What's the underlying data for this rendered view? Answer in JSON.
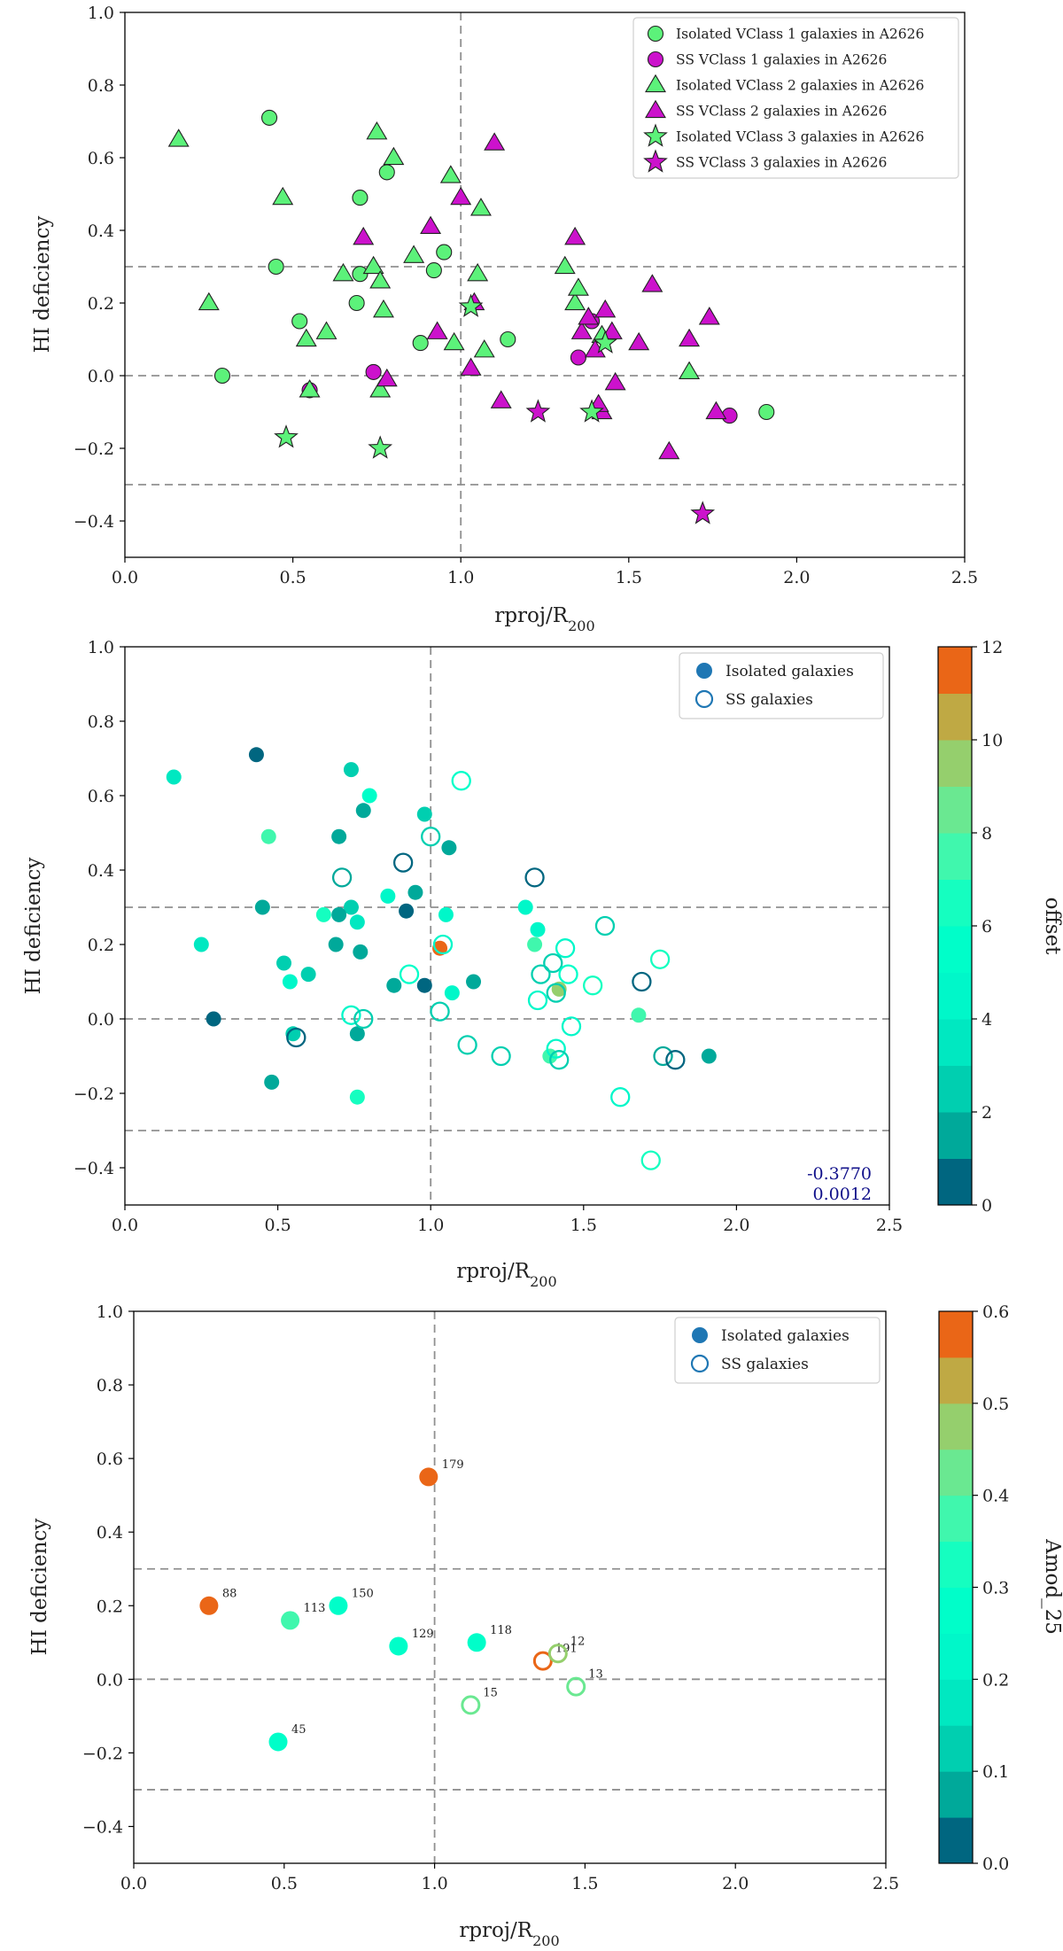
{
  "chart_data": [
    {
      "type": "scatter",
      "xlabel": "rproj/R",
      "xlabel_sub": "200",
      "ylabel": "HI deficiency",
      "xlim": [
        0.0,
        2.5
      ],
      "ylim": [
        -0.5,
        1.0
      ],
      "xticks": [
        "0.0",
        "0.5",
        "1.0",
        "1.5",
        "2.0",
        "2.5"
      ],
      "yticks": [
        "1.0",
        "0.8",
        "0.6",
        "0.4",
        "0.2",
        "0.0",
        "−0.2",
        "−0.4"
      ],
      "hlines": [
        0.3,
        0.0,
        -0.3
      ],
      "vlines": [
        1.0
      ],
      "legend_position": "upper-right",
      "colors": {
        "isolated": "#5cf27a",
        "ss": "#cc12cc",
        "edge": "#222222",
        "ref": "#888888"
      },
      "series": [
        {
          "name": "Isolated VClass 1 galaxies in A2626",
          "marker": "circle",
          "color_key": "isolated",
          "points": [
            [
              0.43,
              0.71
            ],
            [
              0.45,
              0.3
            ],
            [
              0.29,
              0.0
            ],
            [
              0.52,
              0.15
            ],
            [
              0.69,
              0.2
            ],
            [
              0.7,
              0.49
            ],
            [
              0.7,
              0.28
            ],
            [
              0.78,
              0.56
            ],
            [
              0.88,
              0.09
            ],
            [
              0.92,
              0.29
            ],
            [
              0.95,
              0.34
            ],
            [
              1.14,
              0.1
            ],
            [
              1.91,
              -0.1
            ]
          ]
        },
        {
          "name": "SS VClass 1 galaxies in A2626",
          "marker": "circle",
          "color_key": "ss",
          "points": [
            [
              0.55,
              -0.04
            ],
            [
              0.74,
              0.01
            ],
            [
              1.35,
              0.05
            ],
            [
              1.39,
              0.15
            ],
            [
              1.8,
              -0.11
            ]
          ]
        },
        {
          "name": "Isolated VClass 2 galaxies in A2626",
          "marker": "triangle",
          "color_key": "isolated",
          "points": [
            [
              0.16,
              0.65
            ],
            [
              0.25,
              0.2
            ],
            [
              0.47,
              0.49
            ],
            [
              0.54,
              0.1
            ],
            [
              0.55,
              -0.04
            ],
            [
              0.6,
              0.12
            ],
            [
              0.65,
              0.28
            ],
            [
              0.74,
              0.3
            ],
            [
              0.75,
              0.67
            ],
            [
              0.76,
              0.26
            ],
            [
              0.77,
              0.18
            ],
            [
              0.8,
              0.6
            ],
            [
              0.86,
              0.33
            ],
            [
              0.97,
              0.55
            ],
            [
              0.98,
              0.09
            ],
            [
              1.05,
              0.28
            ],
            [
              1.06,
              0.46
            ],
            [
              1.07,
              0.07
            ],
            [
              1.31,
              0.3
            ],
            [
              1.34,
              0.2
            ],
            [
              1.35,
              0.24
            ],
            [
              1.68,
              0.01
            ],
            [
              0.76,
              -0.04
            ],
            [
              1.42,
              0.11
            ]
          ]
        },
        {
          "name": "SS VClass 2 galaxies in A2626",
          "marker": "triangle",
          "color_key": "ss",
          "points": [
            [
              0.71,
              0.38
            ],
            [
              0.78,
              -0.01
            ],
            [
              0.91,
              0.41
            ],
            [
              0.93,
              0.12
            ],
            [
              1.0,
              0.49
            ],
            [
              1.03,
              0.02
            ],
            [
              1.04,
              0.2
            ],
            [
              1.1,
              0.64
            ],
            [
              1.12,
              -0.07
            ],
            [
              1.34,
              0.38
            ],
            [
              1.36,
              0.12
            ],
            [
              1.38,
              0.16
            ],
            [
              1.4,
              0.07
            ],
            [
              1.42,
              -0.1
            ],
            [
              1.43,
              0.18
            ],
            [
              1.45,
              0.12
            ],
            [
              1.46,
              -0.02
            ],
            [
              1.53,
              0.09
            ],
            [
              1.57,
              0.25
            ],
            [
              1.62,
              -0.21
            ],
            [
              1.68,
              0.1
            ],
            [
              1.74,
              0.16
            ],
            [
              1.76,
              -0.1
            ],
            [
              1.41,
              -0.08
            ]
          ]
        },
        {
          "name": "Isolated VClass 3 galaxies in A2626",
          "marker": "star",
          "color_key": "isolated",
          "points": [
            [
              0.48,
              -0.17
            ],
            [
              0.76,
              -0.2
            ],
            [
              1.03,
              0.19
            ],
            [
              1.39,
              -0.1
            ],
            [
              1.43,
              0.09
            ]
          ]
        },
        {
          "name": "SS VClass 3 galaxies in A2626",
          "marker": "star",
          "color_key": "ss",
          "points": [
            [
              1.23,
              -0.1
            ],
            [
              1.72,
              -0.38
            ]
          ]
        }
      ]
    },
    {
      "type": "scatter",
      "xlabel": "rproj/R",
      "xlabel_sub": "200",
      "ylabel": "HI deficiency",
      "xlim": [
        0.0,
        2.5
      ],
      "ylim": [
        -0.5,
        1.0
      ],
      "xticks": [
        "0.0",
        "0.5",
        "1.0",
        "1.5",
        "2.0",
        "2.5"
      ],
      "yticks": [
        "1.0",
        "0.8",
        "0.6",
        "0.4",
        "0.2",
        "0.0",
        "−0.2",
        "−0.4"
      ],
      "hlines": [
        0.3,
        0.0,
        -0.3
      ],
      "vlines": [
        1.0
      ],
      "legend": [
        "Isolated galaxies",
        "SS galaxies"
      ],
      "legend_position": "upper-right",
      "colorbar": {
        "label": "offset",
        "min": 0,
        "max": 12,
        "ticks": [
          "0",
          "2",
          "4",
          "6",
          "8",
          "10",
          "12"
        ],
        "steps": 12
      },
      "annotations": [
        "-0.3770",
        "0.0012"
      ],
      "isolated_points": [
        [
          0.43,
          0.71,
          0.3
        ],
        [
          0.16,
          0.65,
          3.6
        ],
        [
          0.74,
          0.67,
          2.6
        ],
        [
          0.8,
          0.6,
          5.6
        ],
        [
          0.98,
          0.55,
          2.6
        ],
        [
          0.47,
          0.49,
          7.0
        ],
        [
          0.7,
          0.49,
          1.3
        ],
        [
          0.78,
          0.56,
          1.5
        ],
        [
          1.06,
          0.46,
          1.5
        ],
        [
          0.95,
          0.34,
          1.3
        ],
        [
          0.86,
          0.33,
          4.5
        ],
        [
          0.45,
          0.3,
          1.3
        ],
        [
          0.74,
          0.3,
          2.6
        ],
        [
          0.92,
          0.29,
          0.6
        ],
        [
          1.05,
          0.28,
          4.0
        ],
        [
          0.65,
          0.28,
          6.0
        ],
        [
          0.7,
          0.28,
          1.0
        ],
        [
          0.76,
          0.26,
          3.6
        ],
        [
          1.31,
          0.3,
          4.0
        ],
        [
          1.35,
          0.24,
          4.0
        ],
        [
          0.25,
          0.2,
          3.6
        ],
        [
          0.69,
          0.2,
          1.0
        ],
        [
          0.77,
          0.18,
          1.5
        ],
        [
          1.03,
          0.19,
          11.5
        ],
        [
          1.34,
          0.2,
          7.0
        ],
        [
          0.52,
          0.15,
          2.6
        ],
        [
          0.6,
          0.12,
          2.6
        ],
        [
          0.54,
          0.1,
          4.5
        ],
        [
          1.14,
          0.1,
          1.3
        ],
        [
          0.88,
          0.09,
          1.3
        ],
        [
          0.98,
          0.09,
          0.6
        ],
        [
          1.07,
          0.07,
          4.5
        ],
        [
          1.42,
          0.08,
          9.0
        ],
        [
          1.68,
          0.01,
          7.5
        ],
        [
          0.29,
          0.0,
          0.3
        ],
        [
          0.55,
          -0.04,
          2.0
        ],
        [
          0.76,
          -0.04,
          1.0
        ],
        [
          1.39,
          -0.1,
          7.0
        ],
        [
          0.48,
          -0.17,
          1.0
        ],
        [
          0.76,
          -0.21,
          6.5
        ],
        [
          1.91,
          -0.1,
          1.3
        ]
      ],
      "ss_points": [
        [
          1.1,
          0.64,
          5.6
        ],
        [
          1.0,
          0.49,
          2.6
        ],
        [
          0.91,
          0.42,
          0.3
        ],
        [
          0.71,
          0.38,
          1.0
        ],
        [
          1.34,
          0.38,
          0.3
        ],
        [
          1.57,
          0.25,
          2.6
        ],
        [
          1.04,
          0.2,
          4.0
        ],
        [
          1.44,
          0.19,
          4.5
        ],
        [
          1.75,
          0.16,
          6.0
        ],
        [
          1.4,
          0.15,
          2.6
        ],
        [
          0.93,
          0.12,
          5.5
        ],
        [
          1.36,
          0.12,
          2.6
        ],
        [
          1.45,
          0.12,
          5.5
        ],
        [
          1.53,
          0.09,
          6.5
        ],
        [
          1.69,
          0.1,
          0.6
        ],
        [
          1.41,
          0.07,
          2.6
        ],
        [
          1.03,
          0.02,
          2.6
        ],
        [
          0.74,
          0.01,
          4.0
        ],
        [
          0.78,
          0.0,
          2.0
        ],
        [
          1.35,
          0.05,
          4.5
        ],
        [
          1.46,
          -0.02,
          4.5
        ],
        [
          0.56,
          -0.05,
          0.6
        ],
        [
          1.12,
          -0.07,
          2.6
        ],
        [
          1.41,
          -0.08,
          4.5
        ],
        [
          1.23,
          -0.1,
          2.6
        ],
        [
          1.42,
          -0.11,
          2.6
        ],
        [
          1.76,
          -0.1,
          1.5
        ],
        [
          1.8,
          -0.11,
          0.6
        ],
        [
          1.62,
          -0.21,
          4.5
        ],
        [
          1.72,
          -0.38,
          6.0
        ]
      ]
    },
    {
      "type": "scatter",
      "xlabel": "rproj/R",
      "xlabel_sub": "200",
      "ylabel": "HI deficiency",
      "xlim": [
        0.0,
        2.5
      ],
      "ylim": [
        -0.5,
        1.0
      ],
      "xticks": [
        "0.0",
        "0.5",
        "1.0",
        "1.5",
        "2.0",
        "2.5"
      ],
      "yticks": [
        "1.0",
        "0.8",
        "0.6",
        "0.4",
        "0.2",
        "0.0",
        "−0.2",
        "−0.4"
      ],
      "hlines": [
        0.3,
        0.0,
        -0.3
      ],
      "vlines": [
        1.0
      ],
      "legend": [
        "Isolated galaxies",
        "SS galaxies"
      ],
      "legend_position": "upper-right",
      "colorbar": {
        "label": "Amod_25",
        "min": 0.0,
        "max": 0.6,
        "ticks": [
          "0.0",
          "0.1",
          "0.2",
          "0.3",
          "0.4",
          "0.5",
          "0.6"
        ],
        "steps": 12
      },
      "isolated_points": [
        [
          0.98,
          0.55,
          0.59,
          "179"
        ],
        [
          0.25,
          0.2,
          0.58,
          "88"
        ],
        [
          0.52,
          0.16,
          0.37,
          "113"
        ],
        [
          0.68,
          0.2,
          0.29,
          "150"
        ],
        [
          0.88,
          0.09,
          0.27,
          "129"
        ],
        [
          1.14,
          0.1,
          0.28,
          "118"
        ],
        [
          0.48,
          -0.17,
          0.27,
          "45"
        ]
      ],
      "ss_points": [
        [
          1.36,
          0.05,
          0.58,
          "191"
        ],
        [
          1.41,
          0.07,
          0.45,
          "12"
        ],
        [
          1.47,
          -0.02,
          0.43,
          "13"
        ],
        [
          1.12,
          -0.07,
          0.42,
          "15"
        ]
      ]
    }
  ]
}
